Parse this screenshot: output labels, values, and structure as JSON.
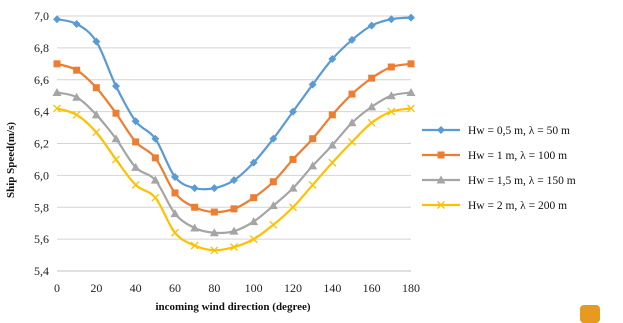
{
  "chart_data": {
    "type": "line",
    "xlabel": "incoming wind direction (degree)",
    "ylabel": "Ship Speed(m/s)",
    "xlim": [
      0,
      180
    ],
    "ylim": [
      5.4,
      7.0
    ],
    "x_ticks": [
      "0",
      "20",
      "40",
      "60",
      "80",
      "100",
      "120",
      "140",
      "160",
      "180"
    ],
    "y_ticks": [
      "5,4",
      "5,6",
      "5,8",
      "6,0",
      "6,2",
      "6,4",
      "6,6",
      "6,8",
      "7,0"
    ],
    "grid": "horizontal",
    "legend_position": "right",
    "x": [
      0,
      10,
      20,
      30,
      40,
      50,
      60,
      70,
      80,
      90,
      100,
      110,
      120,
      130,
      140,
      150,
      160,
      170,
      180
    ],
    "series": [
      {
        "name": "Hw = 0,5 m, λ = 50 m",
        "color": "#5b9bd5",
        "marker": "diamond",
        "values": [
          6.98,
          6.95,
          6.84,
          6.56,
          6.34,
          6.23,
          5.99,
          5.92,
          5.92,
          5.97,
          6.08,
          6.23,
          6.4,
          6.57,
          6.73,
          6.85,
          6.94,
          6.98,
          6.99
        ]
      },
      {
        "name": "Hw = 1 m, λ = 100 m",
        "color": "#ed7d31",
        "marker": "square",
        "values": [
          6.7,
          6.66,
          6.55,
          6.39,
          6.21,
          6.11,
          5.89,
          5.8,
          5.77,
          5.79,
          5.86,
          5.96,
          6.1,
          6.23,
          6.38,
          6.51,
          6.61,
          6.68,
          6.7
        ]
      },
      {
        "name": "Hw = 1,5 m, λ = 150 m",
        "color": "#a5a5a5",
        "marker": "triangle",
        "values": [
          6.52,
          6.49,
          6.38,
          6.23,
          6.05,
          5.97,
          5.76,
          5.67,
          5.64,
          5.65,
          5.71,
          5.81,
          5.92,
          6.06,
          6.19,
          6.33,
          6.43,
          6.5,
          6.52
        ]
      },
      {
        "name": "Hw = 2 m, λ = 200 m",
        "color": "#ffc000",
        "marker": "x",
        "values": [
          6.42,
          6.38,
          6.27,
          6.1,
          5.94,
          5.86,
          5.64,
          5.56,
          5.53,
          5.55,
          5.6,
          5.69,
          5.8,
          5.94,
          6.08,
          6.21,
          6.33,
          6.4,
          6.42
        ]
      }
    ]
  }
}
